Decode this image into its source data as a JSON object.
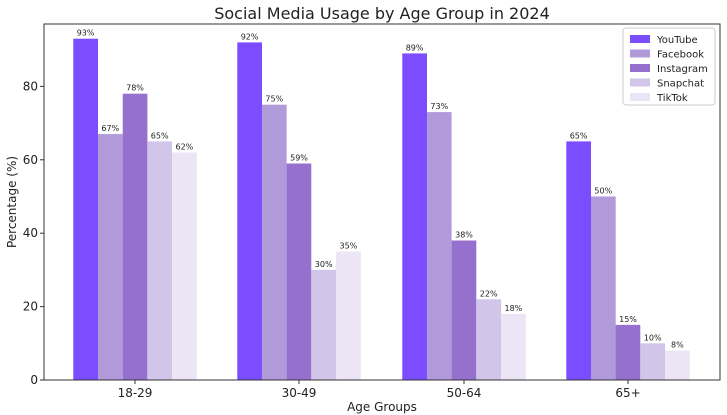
{
  "chart_data": {
    "type": "bar",
    "title": "Social Media Usage by Age Group in 2024",
    "xlabel": "Age Groups",
    "ylabel": "Percentage (%)",
    "categories": [
      "18-29",
      "30-49",
      "50-64",
      "65+"
    ],
    "ylim": [
      0,
      97
    ],
    "yticks": [
      0,
      20,
      40,
      60,
      80
    ],
    "grid": false,
    "legend_position": "top-right",
    "series": [
      {
        "name": "YouTube",
        "color": "#7b4dff",
        "values": [
          93,
          92,
          89,
          65
        ],
        "labels": [
          "93%",
          "92%",
          "89%",
          "65%"
        ]
      },
      {
        "name": "Facebook",
        "color": "#b09ad9",
        "values": [
          67,
          75,
          73,
          50
        ],
        "labels": [
          "67%",
          "75%",
          "73%",
          "50%"
        ]
      },
      {
        "name": "Instagram",
        "color": "#9570cc",
        "values": [
          78,
          59,
          38,
          15
        ],
        "labels": [
          "78%",
          "59%",
          "38%",
          "15%"
        ]
      },
      {
        "name": "Snapchat",
        "color": "#d2c5ea",
        "values": [
          65,
          30,
          22,
          10
        ],
        "labels": [
          "65%",
          "30%",
          "22%",
          "10%"
        ]
      },
      {
        "name": "TikTok",
        "color": "#ebe5f5",
        "values": [
          62,
          35,
          18,
          8
        ],
        "labels": [
          "62%",
          "35%",
          "18%",
          "8%"
        ]
      }
    ]
  }
}
